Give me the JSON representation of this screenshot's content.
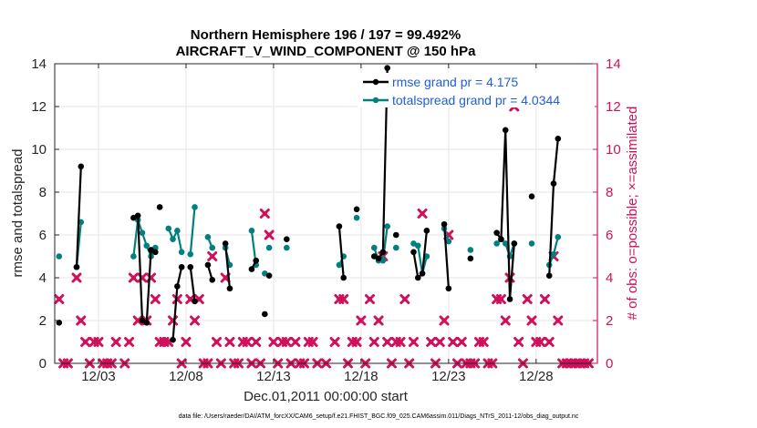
{
  "chart_data": {
    "type": "line",
    "title_line1": "Northern Hemisphere 196 / 197 = 99.492%",
    "title_line2": "AIRCRAFT_V_WIND_COMPONENT @ 150 hPa",
    "xlabel": "Dec.01,2011 00:00:00 start",
    "ylabel": "rmse and totalspread",
    "ylabel_right": "# of obs: o=possible; ×=assimilated",
    "footnote": "data file: /Users/raeder/DAI/ATM_forcXX/CAM6_setup/f.e21.FHIST_BGC.f09_025.CAM6assim.011/Diags_NTrS_2011-12/obs_diag_output.nc",
    "xlim": [
      0.5,
      31.5
    ],
    "ylim": [
      0,
      14
    ],
    "ylim_right": [
      0,
      14
    ],
    "x_ticks": [
      {
        "value": 3,
        "label": "12/03"
      },
      {
        "value": 8,
        "label": "12/08"
      },
      {
        "value": 13,
        "label": "12/13"
      },
      {
        "value": 18,
        "label": "12/18"
      },
      {
        "value": 23,
        "label": "12/23"
      },
      {
        "value": 28,
        "label": "12/28"
      }
    ],
    "y_ticks": [
      0,
      2,
      4,
      6,
      8,
      10,
      12,
      14
    ],
    "y_ticks_right": [
      0,
      2,
      4,
      6,
      8,
      10,
      12,
      14
    ],
    "colors": {
      "rmse": "#000000",
      "spread": "#00807f",
      "obs": "#d0105a",
      "legend_text": "#1f5fd6"
    },
    "series": [
      {
        "name": "rmse grand pr = 4.175",
        "key": "rmse",
        "segments": [
          [
            [
              0.75,
              1.9
            ]
          ],
          [
            [
              1.75,
              4.5
            ],
            [
              2.0,
              9.2
            ]
          ],
          [
            [
              5.0,
              6.8
            ],
            [
              5.25,
              6.9
            ],
            [
              5.5,
              2.0
            ],
            [
              5.75,
              1.9
            ],
            [
              6.0,
              5.3
            ],
            [
              6.25,
              5.2
            ]
          ],
          [
            [
              6.5,
              7.3
            ]
          ],
          [
            [
              7.25,
              1.1
            ],
            [
              7.5,
              3.6
            ],
            [
              7.75,
              4.5
            ]
          ],
          [
            [
              8.25,
              4.5
            ],
            [
              8.5,
              2.9
            ]
          ],
          [
            [
              9.25,
              4.6
            ],
            [
              9.5,
              3.9
            ]
          ],
          [
            [
              10.25,
              5.6
            ],
            [
              10.5,
              3.5
            ]
          ],
          [
            [
              11.75,
              4.4
            ],
            [
              12.0,
              4.8
            ]
          ],
          [
            [
              12.5,
              2.3
            ]
          ],
          [
            [
              12.75,
              4.1
            ]
          ],
          [
            [
              13.75,
              5.8
            ]
          ],
          [
            [
              16.75,
              6.4
            ],
            [
              17.0,
              4.0
            ]
          ],
          [
            [
              17.75,
              7.2
            ]
          ],
          [
            [
              18.75,
              5.0
            ],
            [
              19.0,
              4.9
            ],
            [
              19.25,
              5.2
            ],
            [
              19.5,
              13.8
            ]
          ],
          [
            [
              20.0,
              6.0
            ]
          ],
          [
            [
              21.0,
              5.2
            ],
            [
              21.25,
              4.0
            ],
            [
              21.5,
              4.2
            ],
            [
              21.75,
              6.2
            ]
          ],
          [
            [
              22.75,
              6.5
            ],
            [
              23.0,
              3.5
            ]
          ],
          [
            [
              24.25,
              4.9
            ]
          ],
          [
            [
              25.75,
              6.1
            ],
            [
              26.0,
              5.8
            ],
            [
              26.25,
              10.9
            ],
            [
              26.5,
              3.0
            ],
            [
              26.75,
              5.6
            ]
          ],
          [
            [
              27.75,
              7.8
            ]
          ],
          [
            [
              28.75,
              4.1
            ],
            [
              29.0,
              8.4
            ],
            [
              29.25,
              10.5
            ]
          ]
        ]
      },
      {
        "name": "totalspread grand pr = 4.0344",
        "key": "spread",
        "segments": [
          [
            [
              0.75,
              5.0
            ]
          ],
          [
            [
              1.75,
              4.5
            ],
            [
              2.0,
              6.6
            ]
          ],
          [
            [
              5.0,
              5.0
            ],
            [
              5.25,
              6.7
            ],
            [
              5.5,
              6.1
            ],
            [
              5.75,
              5.5
            ],
            [
              6.0,
              5.0
            ],
            [
              6.25,
              5.4
            ]
          ],
          [
            [
              7.0,
              6.3
            ],
            [
              7.25,
              5.8
            ],
            [
              7.5,
              6.2
            ],
            [
              7.75,
              5.2
            ]
          ],
          [
            [
              8.25,
              5.1
            ],
            [
              8.5,
              7.3
            ]
          ],
          [
            [
              9.25,
              5.9
            ],
            [
              9.5,
              5.4
            ]
          ],
          [
            [
              10.25,
              5.4
            ],
            [
              10.5,
              4.6
            ]
          ],
          [
            [
              11.75,
              6.2
            ],
            [
              12.0,
              4.6
            ]
          ],
          [
            [
              12.5,
              4.2
            ]
          ],
          [
            [
              12.75,
              5.4
            ]
          ],
          [
            [
              13.75,
              5.4
            ]
          ],
          [
            [
              16.75,
              4.6
            ],
            [
              17.0,
              5.0
            ]
          ],
          [
            [
              17.75,
              6.8
            ]
          ],
          [
            [
              18.75,
              5.4
            ],
            [
              19.0,
              4.8
            ],
            [
              19.25,
              4.8
            ],
            [
              19.5,
              6.4
            ]
          ],
          [
            [
              20.0,
              5.4
            ]
          ],
          [
            [
              21.0,
              5.6
            ],
            [
              21.25,
              5.5
            ],
            [
              21.5,
              4.2
            ],
            [
              21.75,
              5.0
            ]
          ],
          [
            [
              22.75,
              6.3
            ],
            [
              23.0,
              5.7
            ]
          ],
          [
            [
              24.25,
              5.3
            ]
          ],
          [
            [
              25.75,
              5.6
            ],
            [
              26.0,
              5.8
            ],
            [
              26.25,
              5.6
            ],
            [
              26.5,
              5.0
            ],
            [
              26.75,
              5.6
            ]
          ],
          [
            [
              27.75,
              5.6
            ]
          ],
          [
            [
              28.75,
              4.6
            ],
            [
              29.0,
              5.1
            ],
            [
              29.25,
              5.9
            ]
          ]
        ]
      }
    ],
    "obs_counts": {
      "name": "# of obs",
      "points": [
        [
          0.75,
          3
        ],
        [
          1.0,
          0
        ],
        [
          1.25,
          0
        ],
        [
          1.75,
          4
        ],
        [
          2.0,
          2
        ],
        [
          2.25,
          1
        ],
        [
          2.5,
          0
        ],
        [
          2.75,
          1
        ],
        [
          3.0,
          1
        ],
        [
          3.25,
          0
        ],
        [
          3.5,
          0
        ],
        [
          3.75,
          0
        ],
        [
          4.0,
          1
        ],
        [
          4.5,
          0
        ],
        [
          4.75,
          1
        ],
        [
          5.0,
          4
        ],
        [
          5.25,
          2
        ],
        [
          5.5,
          4
        ],
        [
          5.75,
          2
        ],
        [
          6.0,
          4
        ],
        [
          6.25,
          3
        ],
        [
          6.5,
          1
        ],
        [
          6.75,
          1
        ],
        [
          7.0,
          1
        ],
        [
          7.25,
          2
        ],
        [
          7.5,
          3
        ],
        [
          7.75,
          0
        ],
        [
          8.0,
          1
        ],
        [
          8.25,
          3
        ],
        [
          8.5,
          2
        ],
        [
          8.75,
          3
        ],
        [
          9.0,
          0
        ],
        [
          9.25,
          0
        ],
        [
          9.5,
          5
        ],
        [
          9.75,
          1
        ],
        [
          10.0,
          0
        ],
        [
          10.25,
          4
        ],
        [
          10.5,
          1
        ],
        [
          10.75,
          0
        ],
        [
          11.0,
          0
        ],
        [
          11.25,
          1
        ],
        [
          11.5,
          1
        ],
        [
          11.75,
          0
        ],
        [
          12.0,
          1
        ],
        [
          12.25,
          0
        ],
        [
          12.5,
          7
        ],
        [
          12.75,
          6
        ],
        [
          13.0,
          1
        ],
        [
          13.25,
          0
        ],
        [
          13.5,
          1
        ],
        [
          13.75,
          1
        ],
        [
          14.0,
          0
        ],
        [
          14.25,
          1
        ],
        [
          14.5,
          0
        ],
        [
          14.75,
          0
        ],
        [
          15.0,
          1
        ],
        [
          15.25,
          1
        ],
        [
          15.5,
          0
        ],
        [
          16.0,
          0
        ],
        [
          16.5,
          1
        ],
        [
          16.75,
          3
        ],
        [
          17.0,
          3
        ],
        [
          17.25,
          0
        ],
        [
          17.5,
          1
        ],
        [
          17.75,
          1
        ],
        [
          18.0,
          2
        ],
        [
          18.25,
          0
        ],
        [
          18.5,
          3
        ],
        [
          18.75,
          1
        ],
        [
          19.0,
          2
        ],
        [
          19.25,
          5
        ],
        [
          19.5,
          1
        ],
        [
          19.75,
          0
        ],
        [
          20.0,
          1
        ],
        [
          20.25,
          1
        ],
        [
          20.5,
          3
        ],
        [
          20.75,
          0
        ],
        [
          21.0,
          1
        ],
        [
          21.5,
          7
        ],
        [
          22.0,
          1
        ],
        [
          22.25,
          0
        ],
        [
          22.5,
          1
        ],
        [
          22.75,
          2
        ],
        [
          23.0,
          6
        ],
        [
          23.25,
          1
        ],
        [
          23.5,
          0
        ],
        [
          23.75,
          1
        ],
        [
          24.0,
          0
        ],
        [
          24.25,
          0
        ],
        [
          24.5,
          0
        ],
        [
          24.75,
          1
        ],
        [
          25.0,
          1
        ],
        [
          25.25,
          0
        ],
        [
          25.5,
          0
        ],
        [
          25.75,
          3
        ],
        [
          26.0,
          3
        ],
        [
          26.25,
          2
        ],
        [
          26.5,
          4
        ],
        [
          26.75,
          12
        ],
        [
          27.0,
          1
        ],
        [
          27.25,
          0
        ],
        [
          27.5,
          3
        ],
        [
          27.75,
          2
        ],
        [
          28.0,
          1
        ],
        [
          28.25,
          1
        ],
        [
          28.5,
          3
        ],
        [
          28.75,
          1
        ],
        [
          29.0,
          5
        ],
        [
          29.25,
          2
        ],
        [
          29.5,
          0
        ],
        [
          29.75,
          0
        ],
        [
          30.0,
          0
        ],
        [
          30.25,
          0
        ],
        [
          30.5,
          0
        ],
        [
          30.75,
          0
        ],
        [
          31.0,
          0
        ]
      ]
    },
    "legend_position": "top-right"
  }
}
